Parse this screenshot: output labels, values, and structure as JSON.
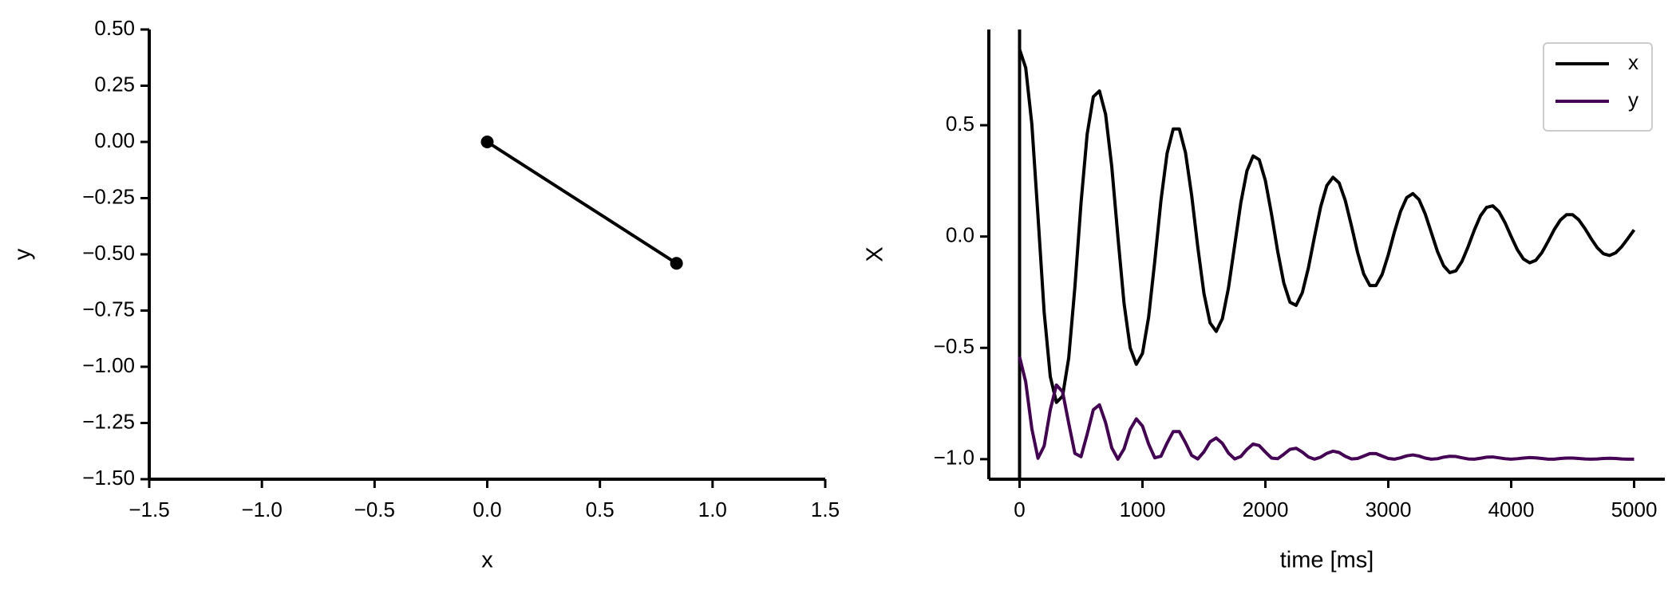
{
  "chart_data": [
    {
      "type": "line",
      "xlabel": "x",
      "ylabel": "y",
      "x": [
        0,
        0.84
      ],
      "y": [
        0,
        -0.54
      ],
      "color": "#000000",
      "markers": true,
      "xlim": [
        -1.5,
        1.5
      ],
      "ylim": [
        -1.5,
        0.5
      ],
      "xticks": [
        {
          "value": -1.5,
          "label": "−1.5"
        },
        {
          "value": -1.0,
          "label": "−1.0"
        },
        {
          "value": -0.5,
          "label": "−0.5"
        },
        {
          "value": 0,
          "label": "0.0"
        },
        0.5,
        {
          "value": 1,
          "label": "1.0"
        },
        1.5
      ],
      "yticks": [
        {
          "value": 0.5,
          "label": "0.50"
        },
        0.25,
        {
          "value": 0,
          "label": "0.00"
        },
        {
          "value": -0.25,
          "label": "−0.25"
        },
        {
          "value": -0.5,
          "label": "−0.50"
        },
        {
          "value": -0.75,
          "label": "−0.75"
        },
        {
          "value": -1,
          "label": "−1.00"
        },
        {
          "value": -1.25,
          "label": "−1.25"
        },
        {
          "value": -1.5,
          "label": "−1.50"
        }
      ]
    },
    {
      "type": "line",
      "xlabel": "time [ms]",
      "ylabel": "X",
      "vline": 0,
      "legend": "upper right",
      "x": [
        0,
        50,
        100,
        150,
        200,
        250,
        300,
        350,
        400,
        450,
        500,
        550,
        600,
        650,
        700,
        750,
        800,
        850,
        900,
        950,
        1000,
        1050,
        1100,
        1150,
        1200,
        1250,
        1300,
        1350,
        1400,
        1450,
        1500,
        1550,
        1600,
        1650,
        1700,
        1750,
        1800,
        1850,
        1900,
        1950,
        2000,
        2050,
        2100,
        2150,
        2200,
        2250,
        2300,
        2350,
        2400,
        2450,
        2500,
        2550,
        2600,
        2650,
        2700,
        2750,
        2800,
        2850,
        2900,
        2950,
        3000,
        3050,
        3100,
        3150,
        3200,
        3250,
        3300,
        3350,
        3400,
        3450,
        3500,
        3550,
        3600,
        3650,
        3700,
        3750,
        3800,
        3850,
        3900,
        3950,
        4000,
        4050,
        4100,
        4150,
        4200,
        4250,
        4300,
        4350,
        4400,
        4450,
        4500,
        4550,
        4600,
        4650,
        4700,
        4750,
        4800,
        4850,
        4900,
        4950,
        5000
      ],
      "series": [
        {
          "name": "x",
          "color": "#000000",
          "values": [
            0.841,
            0.758,
            0.504,
            0.091,
            -0.339,
            -0.629,
            -0.745,
            -0.717,
            -0.545,
            -0.228,
            0.15,
            0.46,
            0.628,
            0.654,
            0.549,
            0.315,
            0,
            -0.3,
            -0.5,
            -0.574,
            -0.525,
            -0.362,
            -0.111,
            0.16,
            0.373,
            0.483,
            0.483,
            0.377,
            0.186,
            -0.047,
            -0.255,
            -0.388,
            -0.426,
            -0.369,
            -0.23,
            -0.04,
            0.151,
            0.295,
            0.362,
            0.345,
            0.251,
            0.101,
            -0.066,
            -0.209,
            -0.295,
            -0.309,
            -0.253,
            -0.141,
            0,
            0.134,
            0.229,
            0.266,
            0.241,
            0.162,
            0.049,
            -0.071,
            -0.168,
            -0.22,
            -0.22,
            -0.17,
            -0.082,
            0.021,
            0.113,
            0.175,
            0.193,
            0.166,
            0.102,
            0.018,
            -0.067,
            -0.131,
            -0.162,
            -0.154,
            -0.111,
            -0.045,
            0.029,
            0.093,
            0.131,
            0.138,
            0.112,
            0.062,
            0,
            -0.059,
            -0.101,
            -0.118,
            -0.107,
            -0.072,
            -0.022,
            0.031,
            0.074,
            0.098,
            0.098,
            0.075,
            0.036,
            -0.009,
            -0.05,
            -0.077,
            -0.085,
            -0.073,
            -0.045,
            -0.008,
            0.03
          ]
        },
        {
          "name": "y",
          "color": "#440154",
          "values": [
            -0.54,
            -0.653,
            -0.864,
            -0.996,
            -0.941,
            -0.778,
            -0.667,
            -0.697,
            -0.839,
            -0.974,
            -0.989,
            -0.888,
            -0.778,
            -0.756,
            -0.836,
            -0.949,
            -1,
            -0.954,
            -0.866,
            -0.819,
            -0.851,
            -0.932,
            -0.994,
            -0.987,
            -0.928,
            -0.876,
            -0.876,
            -0.926,
            -0.983,
            -0.999,
            -0.967,
            -0.922,
            -0.905,
            -0.929,
            -0.973,
            -0.999,
            -0.988,
            -0.956,
            -0.932,
            -0.939,
            -0.968,
            -0.995,
            -0.998,
            -0.978,
            -0.956,
            -0.951,
            -0.968,
            -0.99,
            -1,
            -0.991,
            -0.974,
            -0.964,
            -0.97,
            -0.987,
            -0.999,
            -0.997,
            -0.986,
            -0.975,
            -0.975,
            -0.986,
            -0.997,
            -1,
            -0.994,
            -0.985,
            -0.981,
            -0.986,
            -0.995,
            -1,
            -0.998,
            -0.991,
            -0.987,
            -0.988,
            -0.994,
            -0.999,
            -1,
            -0.996,
            -0.991,
            -0.99,
            -0.994,
            -0.998,
            -1,
            -0.998,
            -0.995,
            -0.993,
            -0.994,
            -0.997,
            -1,
            -1,
            -0.997,
            -0.995,
            -0.995,
            -0.997,
            -0.999,
            -1,
            -0.999,
            -0.997,
            -0.996,
            -0.997,
            -0.999,
            -1,
            -1
          ]
        }
      ],
      "xlim": [
        -250,
        5250
      ],
      "ylim": [
        -1.09,
        0.93
      ],
      "xticks": [
        0,
        1000,
        2000,
        3000,
        4000,
        5000
      ],
      "yticks": [
        0.5,
        {
          "value": 0,
          "label": "0.0"
        },
        {
          "value": -0.5,
          "label": "−0.5"
        },
        {
          "value": -1,
          "label": "−1.0"
        }
      ]
    }
  ]
}
